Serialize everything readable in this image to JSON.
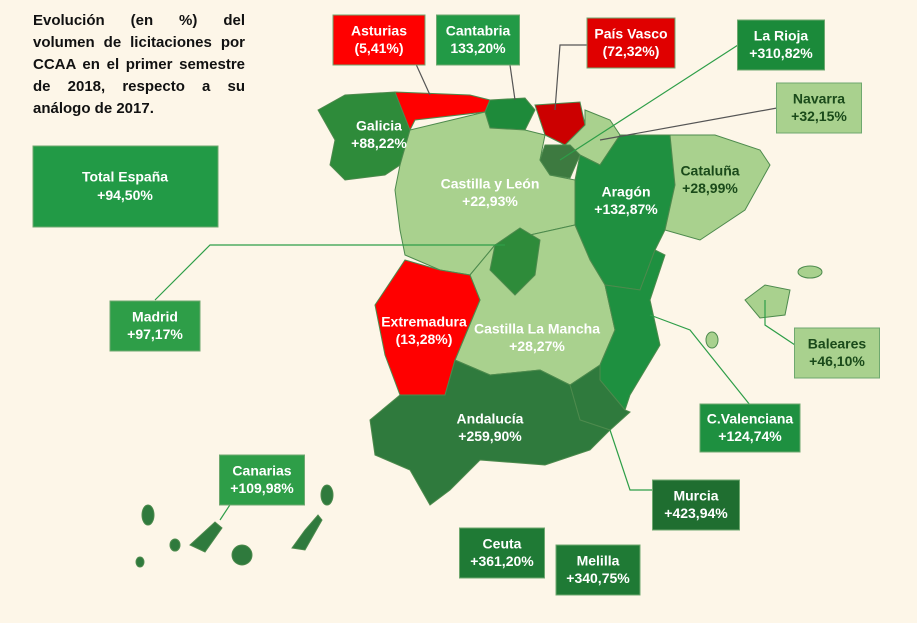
{
  "title": "Evolución (en %) del volumen de licitaciones por CCAA en el primer semestre de 2018, respecto a su análogo de 2017.",
  "total": {
    "name": "Total España",
    "value": "+94,50%"
  },
  "regions": [
    {
      "name": "Asturias",
      "value": "(5,41%)"
    },
    {
      "name": "Cantabria",
      "value": "133,20%"
    },
    {
      "name": "País Vasco",
      "value": "(72,32%)"
    },
    {
      "name": "La Rioja",
      "value": "+310,82%"
    },
    {
      "name": "Navarra",
      "value": "+32,15%"
    },
    {
      "name": "Galicia",
      "value": "+88,22%"
    },
    {
      "name": "Castilla y León",
      "value": "+22,93%"
    },
    {
      "name": "Aragón",
      "value": "+132,87%"
    },
    {
      "name": "Cataluña",
      "value": "+28,99%"
    },
    {
      "name": "Madrid",
      "value": "+97,17%"
    },
    {
      "name": "Extremadura",
      "value": "(13,28%)"
    },
    {
      "name": "Castilla La Mancha",
      "value": "+28,27%"
    },
    {
      "name": "Baleares",
      "value": "+46,10%"
    },
    {
      "name": "C.Valenciana",
      "value": "+124,74%"
    },
    {
      "name": "Andalucía",
      "value": "+259,90%"
    },
    {
      "name": "Canarias",
      "value": "+109,98%"
    },
    {
      "name": "Murcia",
      "value": "+423,94%"
    },
    {
      "name": "Ceuta",
      "value": "+361,20%"
    },
    {
      "name": "Melilla",
      "value": "+340,75%"
    }
  ]
}
